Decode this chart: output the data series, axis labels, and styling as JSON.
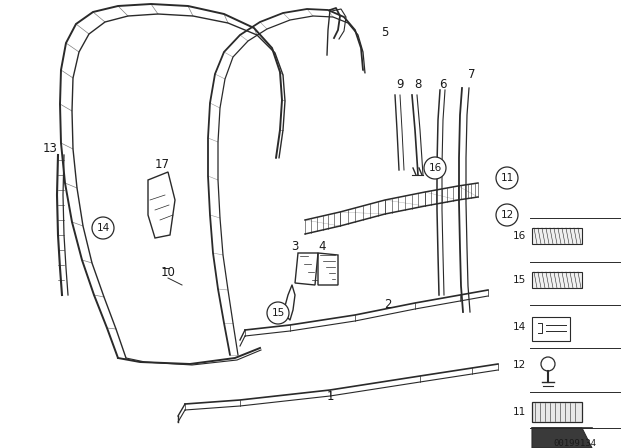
{
  "bg_color": "#ffffff",
  "diagram_id": "00199134",
  "line_color": "#2a2a2a",
  "label_color": "#1a1a1a"
}
